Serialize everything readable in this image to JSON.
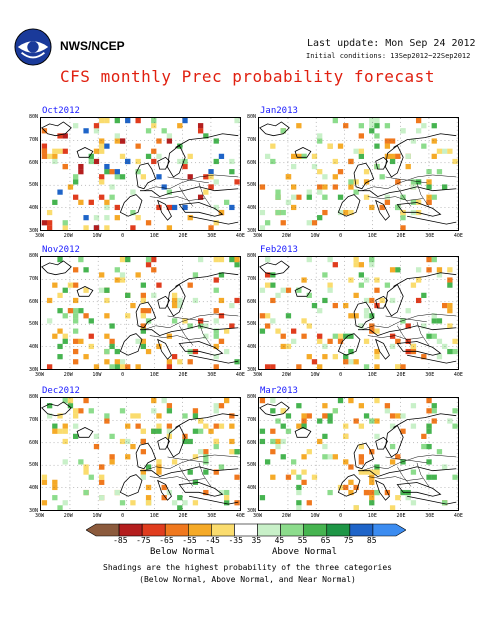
{
  "header": {
    "org": "NWS/NCEP",
    "last_update": "Last update: Mon Sep 24 2012",
    "initial": "Initial conditions: 13Sep2012~22Sep2012",
    "title": "CFS monthly Prec probability forecast"
  },
  "panels": [
    {
      "title": "Oct2012"
    },
    {
      "title": "Jan2013"
    },
    {
      "title": "Nov2012"
    },
    {
      "title": "Feb2013"
    },
    {
      "title": "Dec2012"
    },
    {
      "title": "Mar2013"
    }
  ],
  "axes": {
    "lat_labels": [
      "80N",
      "70N",
      "60N",
      "50N",
      "40N",
      "30N"
    ],
    "lon_labels": [
      "30W",
      "20W",
      "10W",
      "0",
      "10E",
      "20E",
      "30E",
      "40E"
    ]
  },
  "legend": {
    "values": [
      "-85",
      "-75",
      "-65",
      "-55",
      "-45",
      "-35",
      "35",
      "45",
      "55",
      "65",
      "75",
      "85"
    ],
    "colors": [
      "#8b5a3c",
      "#b41e1e",
      "#e03c1e",
      "#f0781e",
      "#f5aa28",
      "#fadc6e",
      "#ffffff",
      "#c8f0c8",
      "#8cdc8c",
      "#46b450",
      "#1e9646",
      "#1e64c8",
      "#3c8cf0"
    ],
    "below_label": "Below Normal",
    "above_label": "Above Normal"
  },
  "notes": {
    "line1": "Shadings are the highest probability of the three categories",
    "line2": "(Below Normal, Above Normal, and Near Normal)"
  }
}
